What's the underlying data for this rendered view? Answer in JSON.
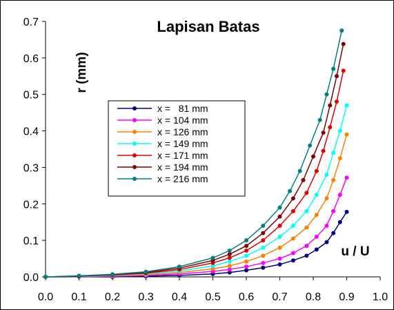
{
  "chart_data": {
    "type": "line",
    "title": "Lapisan Batas",
    "xlabel": "u / U",
    "ylabel": "r (mm)",
    "xlim": [
      0.0,
      1.0
    ],
    "ylim": [
      0.0,
      0.7
    ],
    "x_ticks": [
      "0.0",
      "0.1",
      "0.2",
      "0.3",
      "0.4",
      "0.5",
      "0.6",
      "0.7",
      "0.8",
      "0.9",
      "1.0"
    ],
    "y_ticks": [
      "0.0",
      "0.1",
      "0.2",
      "0.3",
      "0.4",
      "0.5",
      "0.6",
      "0.7"
    ],
    "grid": false,
    "legend_position": "center-left",
    "series": [
      {
        "name": "x =   81 mm",
        "color": "#000080",
        "x": [
          0.0,
          0.1,
          0.2,
          0.3,
          0.4,
          0.5,
          0.55,
          0.6,
          0.65,
          0.7,
          0.74,
          0.78,
          0.81,
          0.84,
          0.86,
          0.88,
          0.9
        ],
        "y": [
          0.0,
          0.0,
          0.0,
          0.002,
          0.004,
          0.008,
          0.012,
          0.018,
          0.025,
          0.034,
          0.045,
          0.058,
          0.075,
          0.095,
          0.12,
          0.15,
          0.178
        ]
      },
      {
        "name": "x = 104 mm",
        "color": "#FF00FF",
        "x": [
          0.0,
          0.1,
          0.2,
          0.3,
          0.4,
          0.5,
          0.55,
          0.6,
          0.65,
          0.7,
          0.74,
          0.78,
          0.81,
          0.84,
          0.86,
          0.88,
          0.9
        ],
        "y": [
          0.0,
          0.0,
          0.002,
          0.004,
          0.008,
          0.015,
          0.02,
          0.028,
          0.038,
          0.05,
          0.065,
          0.085,
          0.11,
          0.14,
          0.18,
          0.225,
          0.272
        ]
      },
      {
        "name": "x = 126 mm",
        "color": "#FF8000",
        "x": [
          0.0,
          0.1,
          0.2,
          0.3,
          0.4,
          0.5,
          0.55,
          0.6,
          0.65,
          0.7,
          0.74,
          0.78,
          0.81,
          0.84,
          0.86,
          0.88,
          0.9
        ],
        "y": [
          0.0,
          0.001,
          0.003,
          0.006,
          0.012,
          0.022,
          0.03,
          0.042,
          0.058,
          0.08,
          0.105,
          0.135,
          0.17,
          0.215,
          0.265,
          0.325,
          0.39
        ]
      },
      {
        "name": "x = 149 mm",
        "color": "#00FFFF",
        "x": [
          0.0,
          0.1,
          0.2,
          0.3,
          0.4,
          0.5,
          0.55,
          0.6,
          0.65,
          0.7,
          0.74,
          0.78,
          0.81,
          0.84,
          0.86,
          0.88,
          0.9
        ],
        "y": [
          0.0,
          0.001,
          0.004,
          0.008,
          0.016,
          0.03,
          0.042,
          0.058,
          0.08,
          0.11,
          0.14,
          0.18,
          0.225,
          0.28,
          0.34,
          0.4,
          0.47
        ]
      },
      {
        "name": "x = 171 mm",
        "color": "#E00000",
        "x": [
          0.0,
          0.1,
          0.2,
          0.3,
          0.4,
          0.5,
          0.55,
          0.6,
          0.65,
          0.7,
          0.74,
          0.78,
          0.81,
          0.83,
          0.85,
          0.87,
          0.89
        ],
        "y": [
          0.0,
          0.002,
          0.005,
          0.01,
          0.02,
          0.038,
          0.052,
          0.072,
          0.1,
          0.14,
          0.18,
          0.23,
          0.29,
          0.345,
          0.41,
          0.48,
          0.565
        ]
      },
      {
        "name": "x = 194 mm",
        "color": "#800000",
        "x": [
          0.0,
          0.1,
          0.2,
          0.3,
          0.4,
          0.5,
          0.55,
          0.6,
          0.65,
          0.7,
          0.74,
          0.77,
          0.8,
          0.83,
          0.85,
          0.87,
          0.89
        ],
        "y": [
          0.0,
          0.002,
          0.006,
          0.012,
          0.024,
          0.045,
          0.062,
          0.085,
          0.12,
          0.165,
          0.215,
          0.265,
          0.33,
          0.395,
          0.47,
          0.55,
          0.638
        ]
      },
      {
        "name": "x = 216 mm",
        "color": "#008080",
        "x": [
          0.0,
          0.1,
          0.2,
          0.3,
          0.4,
          0.5,
          0.55,
          0.6,
          0.65,
          0.7,
          0.73,
          0.76,
          0.79,
          0.82,
          0.84,
          0.86,
          0.885
        ],
        "y": [
          0.0,
          0.003,
          0.007,
          0.014,
          0.028,
          0.052,
          0.072,
          0.1,
          0.14,
          0.19,
          0.235,
          0.29,
          0.36,
          0.43,
          0.5,
          0.57,
          0.675
        ]
      }
    ]
  }
}
